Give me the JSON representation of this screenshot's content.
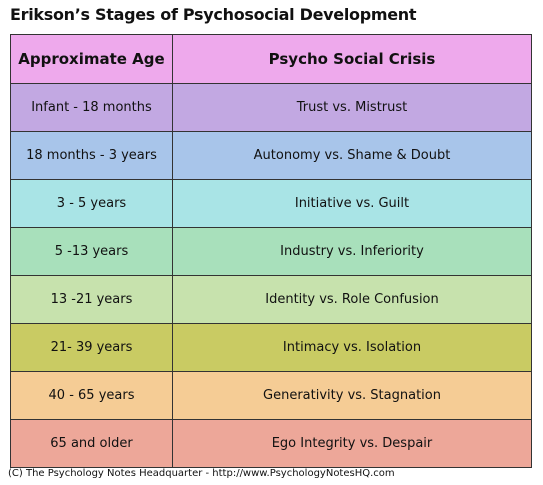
{
  "title": "Erikson’s Stages of Psychosocial Development",
  "table": {
    "headers": [
      "Approximate Age",
      "Psycho Social Crisis"
    ],
    "rows": [
      [
        "Infant - 18 months",
        "Trust vs. Mistrust"
      ],
      [
        "18 months - 3 years",
        "Autonomy vs. Shame & Doubt"
      ],
      [
        "3 - 5 years",
        "Initiative vs. Guilt"
      ],
      [
        "5 -13 years",
        "Industry vs. Inferiority"
      ],
      [
        "13 -21 years",
        "Identity vs. Role Confusion"
      ],
      [
        "21- 39 years",
        "Intimacy vs. Isolation"
      ],
      [
        "40 - 65 years",
        "Generativity vs. Stagnation"
      ],
      [
        "65 and older",
        "Ego Integrity vs. Despair"
      ]
    ]
  },
  "footer": "(C) The Psychology Notes Headquarter - http://www.PsychologyNotesHQ.com"
}
